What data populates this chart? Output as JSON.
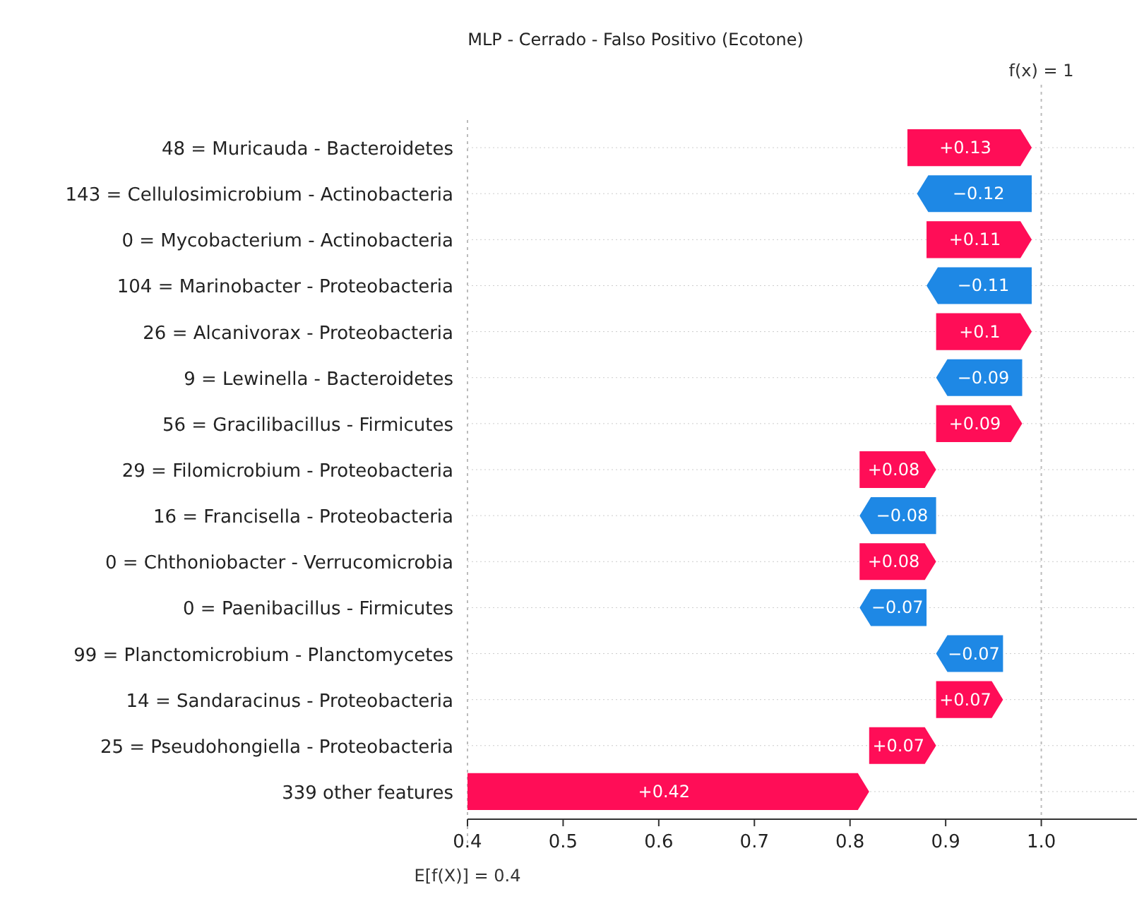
{
  "chart_data": {
    "type": "bar",
    "orientation": "horizontal",
    "title": "MLP - Cerrado - Falso Positivo (Ecotone)",
    "categories": [
      "48 = Muricauda - Bacteroidetes",
      "143 = Cellulosimicrobium - Actinobacteria",
      "0 = Mycobacterium - Actinobacteria",
      "104 = Marinobacter - Proteobacteria",
      "26 = Alcanivorax - Proteobacteria",
      "9 = Lewinella - Bacteroidetes",
      "56 = Gracilibacillus - Firmicutes",
      "29 = Filomicrobium - Proteobacteria",
      "16 = Francisella - Proteobacteria",
      "0 = Chthoniobacter - Verrucomicrobia",
      "0 = Paenibacillus - Firmicutes",
      "99 = Planctomicrobium - Planctomycetes",
      "14 = Sandaracinus - Proteobacteria",
      "25 = Pseudohongiella - Proteobacteria",
      "339 other features"
    ],
    "values": [
      0.13,
      -0.12,
      0.11,
      -0.11,
      0.1,
      -0.09,
      0.09,
      0.08,
      -0.08,
      0.08,
      -0.07,
      -0.07,
      0.07,
      0.07,
      0.42
    ],
    "base": [
      0.86,
      0.99,
      0.88,
      0.99,
      0.89,
      0.98,
      0.89,
      0.81,
      0.89,
      0.81,
      0.88,
      0.96,
      0.89,
      0.82,
      0.4
    ],
    "value_labels": [
      "+0.13",
      "−0.12",
      "+0.11",
      "−0.11",
      "+0.1",
      "−0.09",
      "+0.09",
      "+0.08",
      "−0.08",
      "+0.08",
      "−0.07",
      "−0.07",
      "+0.07",
      "+0.07",
      "+0.42"
    ],
    "colors": [
      "#ff0d57",
      "#1e88e5",
      "#ff0d57",
      "#1e88e5",
      "#ff0d57",
      "#1e88e5",
      "#ff0d57",
      "#ff0d57",
      "#1e88e5",
      "#ff0d57",
      "#1e88e5",
      "#1e88e5",
      "#ff0d57",
      "#ff0d57",
      "#ff0d57"
    ],
    "xlim": [
      0.4,
      1.1
    ],
    "xticks": [
      0.4,
      0.5,
      0.6,
      0.7,
      0.8,
      0.9,
      {
        "value": 1,
        "label": "1.0"
      }
    ],
    "grid": "y",
    "ref_lines": [
      {
        "axis": "x",
        "value": 1,
        "label": "f(x) = 1",
        "color": "#bbbbbb",
        "line_style": "dotted"
      },
      {
        "axis": "x",
        "value": 0.4,
        "label": "E[f(X)] = 0.4",
        "color": "#bbbbbb",
        "line_style": "dotted"
      }
    ]
  }
}
